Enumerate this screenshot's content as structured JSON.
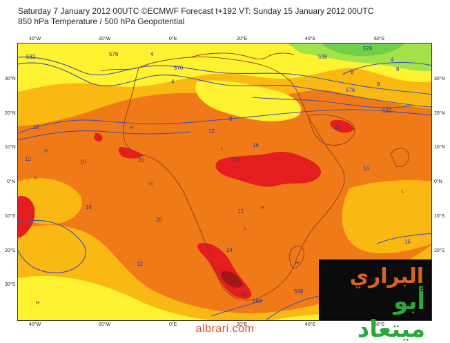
{
  "header": {
    "title_line1": "Saturday 7 January 2012 00UTC ©ECMWF Forecast t+192 VT: Sunday 15 January 2012 00UTC",
    "title_line2": "850 hPa Temperature / 500 hPa Geopotential"
  },
  "axes": {
    "lon_labels": [
      "40°W",
      "20°W",
      "0°E",
      "20°E",
      "40°E",
      "60°E"
    ],
    "lat_labels": [
      "30°N",
      "20°N",
      "10°N",
      "0°N",
      "10°S",
      "20°S",
      "30°S"
    ]
  },
  "contour_labels": [
    "582",
    "576",
    "570",
    "576",
    "588",
    "576",
    "582",
    "588",
    "8",
    "4",
    "8",
    "12",
    "4",
    "8",
    "12",
    "16",
    "20",
    "20",
    "16",
    "16",
    "20",
    "20",
    "24",
    "12",
    "16",
    "16",
    "12",
    "4",
    "8",
    "16",
    "12",
    "588"
  ],
  "pressure_markers": [
    "H",
    "L",
    "H",
    "L",
    "H",
    "H",
    "L",
    "H",
    "H",
    "L"
  ],
  "colors": {
    "temp_hot": "#e41e1e",
    "temp_warm": "#f07a18",
    "temp_mild": "#f9b812",
    "temp_cool": "#fff230",
    "temp_cold": "#a4e24a",
    "geopotential_line": "#4050b4",
    "coastline": "#8a3d18"
  },
  "watermark": {
    "logo_line1": "البراري",
    "logo_line2": "أبو ميتعاد",
    "website": "albrari.com"
  }
}
